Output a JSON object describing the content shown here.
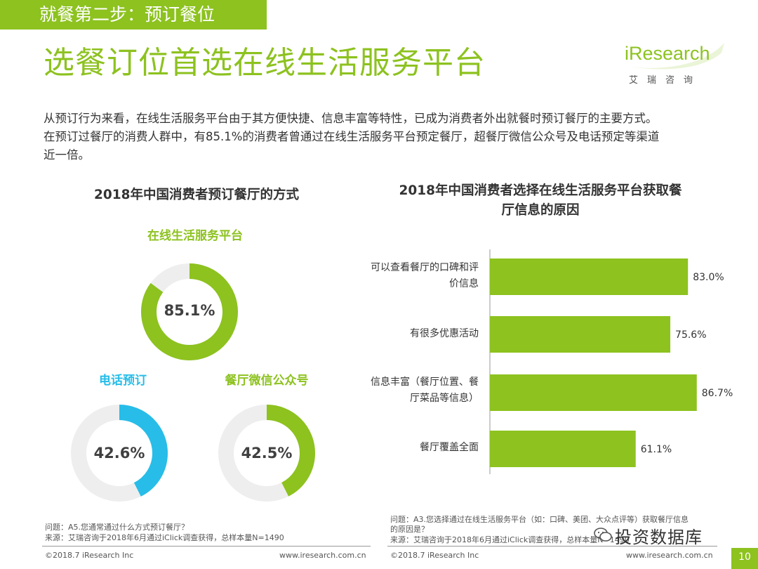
{
  "header": {
    "step": "就餐第二步：预订餐位",
    "title": "选餐订位首选在线生活服务平台"
  },
  "logo": {
    "word": "iResearch",
    "cn": "艾瑞咨询"
  },
  "intro": [
    "从预订行为来看，在线生活服务平台由于其方便快捷、信息丰富等特性，已成为消费者外出就餐时预订餐厅的主要方式。",
    "在预订过餐厅的消费人群中，有85.1%的消费者曾通过在线生活服务平台预定餐厅，超餐厅微信公众号及电话预定等渠道",
    "近一倍。"
  ],
  "colors": {
    "green": "#8dc21f",
    "blue": "#27bde8",
    "track": "#eeeeee"
  },
  "chart_data": [
    {
      "type": "pie",
      "title": "2018年中国消费者预订餐厅的方式",
      "items": [
        {
          "label": "在线生活服务平台",
          "value": 85.1,
          "display": "85.1%",
          "color": "#8dc21f"
        },
        {
          "label": "电话预订",
          "value": 42.6,
          "display": "42.6%",
          "color": "#27bde8"
        },
        {
          "label": "餐厅微信公众号",
          "value": 42.5,
          "display": "42.5%",
          "color": "#8dc21f"
        }
      ]
    },
    {
      "type": "bar",
      "orientation": "horizontal",
      "title": "2018年中国消费者选择在线生活服务平台获取餐厅信息的原因",
      "title_lines": [
        "2018年中国消费者选择在线生活服务平台获取餐",
        "厅信息的原因"
      ],
      "categories": [
        [
          "可以查看餐厅的口碑和评",
          "价信息"
        ],
        [
          "有很多优惠活动"
        ],
        [
          "信息丰富（餐厅位置、餐",
          "厅菜品等信息）"
        ],
        [
          "餐厅覆盖全面"
        ]
      ],
      "values": [
        83.0,
        75.6,
        86.7,
        61.1
      ],
      "display": [
        "83.0%",
        "75.6%",
        "86.7%",
        "61.1%"
      ],
      "color": "#8dc21f",
      "xlim": [
        0,
        100
      ]
    }
  ],
  "footnote_left": {
    "question": "问题：A5.您通常通过什么方式预订餐厅？",
    "source": "来源：艾瑞咨询于2018年6月通过iClick调查获得，总样本量N=1490"
  },
  "footnote_right": {
    "question_lines": [
      "问题：A3.您选择通过在线生活服务平台（如：口碑、美团、大众点评等）获取餐厅信息",
      "的原因是？"
    ],
    "source": "来源：艾瑞咨询于2018年6月通过iClick调查获得，总样本量N=1490"
  },
  "copyright": "©2018.7 iResearch Inc",
  "website": "www.iresearch.com.cn",
  "page_number": "10",
  "watermark": "投资数据库"
}
